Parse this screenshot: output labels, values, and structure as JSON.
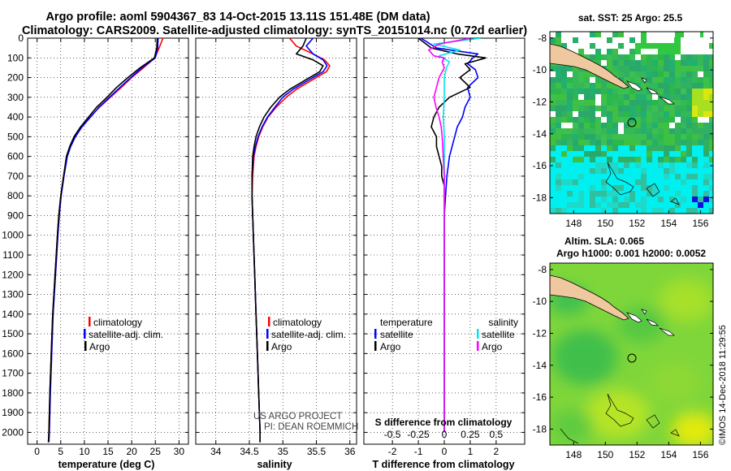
{
  "title_line1": "Argo profile: aoml 5904367_83 14-Oct-2015 13.11S 151.48E (DM data)",
  "title_line2": "Climatology: CARS2009. Satellite-adjusted climatology: synTS_20151014.nc (0.72d earlier)",
  "colors": {
    "climatology": "#ff0000",
    "satellite": "#0000ff",
    "argo": "#000000",
    "sat_salinity": "#00e5ee",
    "argo_salinity": "#ff00ff"
  },
  "depth_ticks": [
    "0",
    "100",
    "200",
    "300",
    "400",
    "500",
    "600",
    "700",
    "800",
    "900",
    "1000",
    "1100",
    "1200",
    "1300",
    "1400",
    "1500",
    "1600",
    "1700",
    "1800",
    "1900",
    "2000"
  ],
  "credit_line1": "US ARGO PROJECT",
  "credit_line2": "PI: DEAN ROEMMICH",
  "watermark": "©IMOS 14-Dec-2018 11:29:55",
  "chart_data": [
    {
      "type": "line",
      "id": "temperature",
      "xlabel": "temperature (deg C)",
      "ylabel": "depth",
      "xlim": [
        -2,
        32
      ],
      "ylim": [
        2060,
        0
      ],
      "xticks": [
        0,
        5,
        10,
        15,
        20,
        25,
        30
      ],
      "xticklabels": [
        "0",
        "5",
        "10",
        "15",
        "20",
        "25",
        "30"
      ],
      "legend": [
        "climatology",
        "satellite-adj. clim.",
        "Argo"
      ],
      "legend_location": "lower-center",
      "series": [
        {
          "name": "climatology",
          "color": "#ff0000",
          "depth": [
            0,
            50,
            100,
            150,
            200,
            250,
            300,
            350,
            400,
            450,
            500,
            550,
            600,
            700,
            800,
            900,
            1000,
            1200,
            1400,
            1600,
            1800,
            2000,
            2050
          ],
          "values": [
            26.6,
            25.8,
            24.9,
            22.5,
            20.0,
            17.8,
            15.5,
            13.2,
            11.2,
            9.3,
            7.9,
            7.0,
            6.3,
            5.6,
            5.0,
            4.6,
            4.3,
            3.8,
            3.3,
            3.0,
            2.7,
            2.5,
            2.4
          ]
        },
        {
          "name": "satellite-adj. clim.",
          "color": "#0000ff",
          "depth": [
            0,
            50,
            100,
            150,
            200,
            250,
            300,
            350,
            400,
            450,
            500,
            550,
            600,
            700,
            800,
            900,
            1000,
            1200,
            1400,
            1600,
            1800,
            2000,
            2050
          ],
          "values": [
            25.6,
            25.5,
            25.0,
            22.2,
            19.8,
            17.5,
            15.3,
            13.1,
            11.3,
            9.5,
            8.1,
            7.1,
            6.4,
            5.7,
            5.1,
            4.7,
            4.4,
            3.9,
            3.4,
            3.1,
            2.8,
            2.6,
            2.5
          ]
        },
        {
          "name": "Argo",
          "color": "#000000",
          "depth": [
            0,
            50,
            100,
            150,
            200,
            250,
            300,
            350,
            400,
            450,
            500,
            550,
            600,
            700,
            800,
            900,
            1000,
            1200,
            1400,
            1600,
            1800,
            2000,
            2050
          ],
          "values": [
            25.4,
            25.3,
            24.8,
            21.8,
            19.2,
            16.8,
            14.8,
            12.6,
            10.9,
            9.2,
            7.8,
            6.9,
            6.2,
            5.6,
            5.0,
            4.6,
            4.3,
            3.8,
            3.3,
            3.0,
            2.7,
            2.5,
            2.4
          ]
        }
      ]
    },
    {
      "type": "line",
      "id": "salinity",
      "xlabel": "salinity",
      "xlim": [
        33.7,
        36.1
      ],
      "ylim": [
        2060,
        0
      ],
      "xticks": [
        34,
        34.5,
        35,
        35.5,
        36
      ],
      "xticklabels": [
        "34",
        "34.5",
        "35",
        "35.5",
        "36"
      ],
      "legend": [
        "climatology",
        "satellite-adj. clim.",
        "Argo"
      ],
      "legend_location": "lower-right",
      "series": [
        {
          "name": "climatology",
          "color": "#ff0000",
          "depth": [
            0,
            40,
            80,
            110,
            140,
            170,
            200,
            230,
            260,
            300,
            350,
            400,
            450,
            500,
            550,
            600,
            700,
            800,
            900,
            1000,
            1200,
            1400,
            1600,
            1800,
            2000,
            2050
          ],
          "values": [
            35.1,
            35.2,
            35.45,
            35.62,
            35.7,
            35.65,
            35.5,
            35.35,
            35.2,
            35.05,
            34.9,
            34.78,
            34.7,
            34.64,
            34.6,
            34.57,
            34.55,
            34.54,
            34.55,
            34.56,
            34.58,
            34.6,
            34.62,
            34.64,
            34.66,
            34.66
          ]
        },
        {
          "name": "satellite-adj. clim.",
          "color": "#0000ff",
          "depth": [
            0,
            40,
            80,
            110,
            140,
            170,
            200,
            230,
            260,
            300,
            350,
            400,
            450,
            500,
            550,
            600,
            700,
            800,
            900,
            1000,
            1200,
            1400,
            1600,
            1800,
            2000,
            2050
          ],
          "values": [
            35.45,
            35.35,
            35.45,
            35.6,
            35.66,
            35.6,
            35.45,
            35.3,
            35.15,
            35.0,
            34.88,
            34.77,
            34.69,
            34.63,
            34.59,
            34.56,
            34.54,
            34.54,
            34.55,
            34.56,
            34.58,
            34.6,
            34.62,
            34.64,
            34.66,
            34.66
          ]
        },
        {
          "name": "Argo",
          "color": "#000000",
          "depth": [
            0,
            40,
            80,
            110,
            140,
            170,
            200,
            230,
            260,
            300,
            350,
            400,
            450,
            500,
            550,
            600,
            700,
            800,
            900,
            1000,
            1200,
            1400,
            1600,
            1800,
            2000,
            2050
          ],
          "values": [
            35.35,
            35.3,
            35.2,
            35.45,
            35.6,
            35.55,
            35.4,
            35.25,
            35.1,
            34.95,
            34.82,
            34.72,
            34.65,
            34.6,
            34.57,
            34.55,
            34.54,
            34.54,
            34.55,
            34.56,
            34.58,
            34.6,
            34.62,
            34.64,
            34.66,
            34.66
          ]
        }
      ]
    },
    {
      "type": "line",
      "id": "differences",
      "xlabel": "T difference from climatology",
      "xlabel_secondary": "S difference from climatology",
      "xlim": [
        -3.1,
        3.1
      ],
      "ylim": [
        2060,
        0
      ],
      "xticks": [
        -2,
        -1,
        0,
        1,
        2
      ],
      "xticklabels": [
        "-2",
        "-1",
        "0",
        "1",
        "2"
      ],
      "xticklabels_secondary": [
        "-0.5",
        "-0.25",
        "0",
        "0.25",
        "0.5"
      ],
      "legend_temperature_header": "temperature",
      "legend_salinity_header": "salinity",
      "legend": [
        "satellite",
        "Argo",
        "satellite",
        "Argo"
      ],
      "series": [
        {
          "name": "T satellite",
          "color": "#0000ff",
          "depth": [
            0,
            50,
            80,
            100,
            130,
            160,
            200,
            250,
            300,
            350,
            400,
            450,
            500,
            600,
            700,
            800,
            900,
            1000,
            1200,
            1600,
            2000
          ],
          "values": [
            -0.9,
            -0.3,
            1.3,
            1.1,
            0.9,
            1.2,
            1.3,
            0.9,
            1.0,
            0.8,
            0.7,
            0.5,
            0.4,
            0.2,
            0.1,
            0.05,
            0.0,
            0.0,
            0.0,
            0.0,
            0.0
          ]
        },
        {
          "name": "T Argo",
          "color": "#000000",
          "depth": [
            0,
            50,
            80,
            100,
            130,
            160,
            200,
            250,
            300,
            350,
            400,
            450,
            500,
            550,
            600,
            650,
            700,
            750,
            800,
            900,
            1000,
            1200,
            1600,
            2000
          ],
          "values": [
            -1.0,
            -0.5,
            0.5,
            1.6,
            0.8,
            1.0,
            0.6,
            1.0,
            0.2,
            -0.2,
            -0.4,
            -0.5,
            -0.3,
            -0.3,
            -0.2,
            -0.1,
            -0.1,
            0.0,
            0.0,
            0.0,
            0.0,
            0.0,
            0.0,
            0.0
          ]
        },
        {
          "name": "S satellite",
          "color": "#00e5ee",
          "depth": [
            0,
            30,
            60,
            90,
            120,
            150,
            200,
            300,
            400,
            500,
            600,
            800,
            1000,
            1400,
            2000
          ],
          "values": [
            0.35,
            -0.1,
            0.15,
            -0.05,
            0.05,
            0.02,
            0.0,
            0.0,
            -0.01,
            0.0,
            0.0,
            0.0,
            0.0,
            0.0,
            0.0
          ]
        },
        {
          "name": "S Argo",
          "color": "#ff00ff",
          "depth": [
            0,
            30,
            60,
            90,
            100,
            120,
            150,
            200,
            300,
            350,
            400,
            450,
            500,
            600,
            700,
            800,
            1000,
            1400,
            2000
          ],
          "values": [
            0.25,
            -0.05,
            -0.15,
            -0.1,
            0.0,
            -0.02,
            0.0,
            -0.05,
            -0.1,
            -0.08,
            -0.05,
            -0.03,
            -0.02,
            -0.01,
            0.0,
            0.0,
            0.0,
            0.0,
            0.0
          ]
        }
      ]
    },
    {
      "type": "heatmap",
      "id": "sst_map",
      "title": "sat. SST: 25 Argo: 25.5",
      "xlim": [
        146.5,
        156.8
      ],
      "ylim": [
        -19,
        -7.6
      ],
      "xticks": [
        148,
        150,
        152,
        154,
        156
      ],
      "xticklabels": [
        "148",
        "150",
        "152",
        "154",
        "156"
      ],
      "yticks": [
        -8,
        -10,
        -12,
        -14,
        -16,
        -18
      ],
      "yticklabels": [
        "-8",
        "-10",
        "-12",
        "-14",
        "-16",
        "-18"
      ],
      "float_position": {
        "lon": 151.48,
        "lat": -13.11
      }
    },
    {
      "type": "heatmap",
      "id": "sla_map",
      "title": "Altim. SLA: 0.065",
      "subtitle": "Argo h1000: 0.001 h2000: 0.0052",
      "xlim": [
        146.5,
        156.8
      ],
      "ylim": [
        -19,
        -7.6
      ],
      "xticks": [
        148,
        150,
        152,
        154,
        156
      ],
      "xticklabels": [
        "148",
        "150",
        "152",
        "154",
        "156"
      ],
      "yticks": [
        -8,
        -10,
        -12,
        -14,
        -16,
        -18
      ],
      "yticklabels": [
        "-8",
        "-10",
        "-12",
        "-14",
        "-16",
        "-18"
      ],
      "float_position": {
        "lon": 151.48,
        "lat": -13.11
      }
    }
  ]
}
